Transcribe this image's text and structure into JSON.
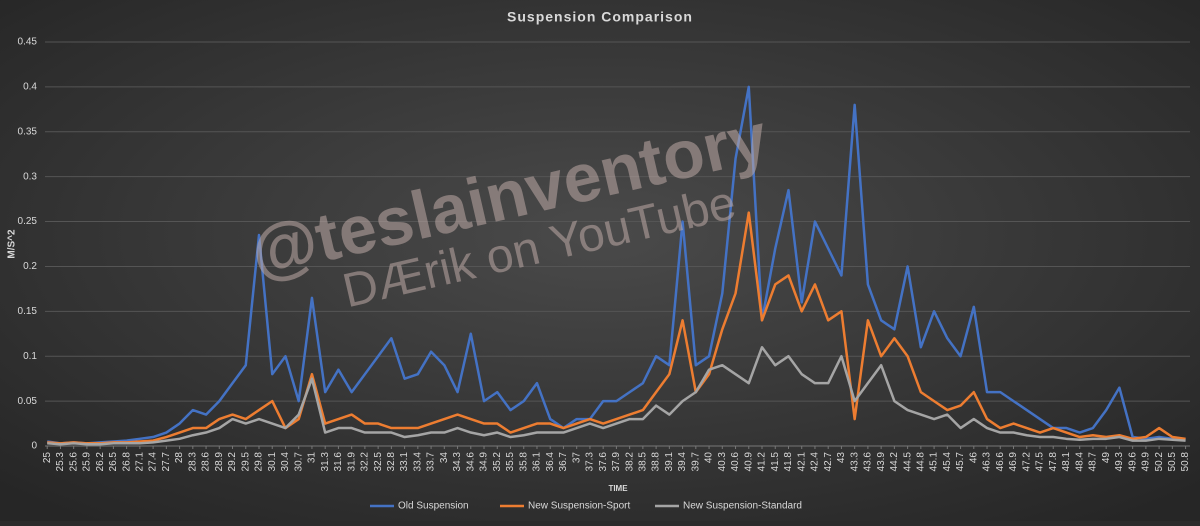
{
  "chart_data": {
    "type": "line",
    "title": "Suspension Comparison",
    "x_label": "TIME",
    "y_label": "M/S^2",
    "annotations": [
      "@teslainventory",
      "DÆrik on YouTube"
    ],
    "x": [
      25,
      25.3,
      25.6,
      25.9,
      26.2,
      26.5,
      26.8,
      27.1,
      27.4,
      27.7,
      28,
      28.3,
      28.6,
      28.9,
      29.2,
      29.5,
      29.8,
      30.1,
      30.4,
      30.7,
      31,
      31.3,
      31.6,
      31.9,
      32.2,
      32.5,
      32.8,
      33.1,
      33.4,
      33.7,
      34,
      34.3,
      34.6,
      34.9,
      35.2,
      35.5,
      35.8,
      36.1,
      36.4,
      36.7,
      37,
      37.3,
      37.6,
      37.9,
      38.2,
      38.5,
      38.8,
      39.1,
      39.4,
      39.7,
      40,
      40.3,
      40.6,
      40.9,
      41.2,
      41.5,
      41.8,
      42.1,
      42.4,
      42.7,
      43,
      43.3,
      43.6,
      43.9,
      44.2,
      44.5,
      44.8,
      45.1,
      45.4,
      45.7,
      46,
      46.3,
      46.6,
      46.9,
      47.2,
      47.5,
      47.8,
      48.1,
      48.4,
      48.7,
      49,
      49.3,
      49.6,
      49.9,
      50.2,
      50.5,
      50.8
    ],
    "xticks": [
      25,
      25.3,
      25.6,
      25.9,
      26.2,
      26.5,
      26.8,
      27.1,
      27.4,
      27.7,
      28,
      28.3,
      28.6,
      28.9,
      29.2,
      29.5,
      29.8,
      30.1,
      30.4,
      30.7,
      31,
      31.3,
      31.6,
      31.9,
      32.2,
      32.5,
      32.8,
      33.1,
      33.4,
      33.7,
      34,
      34.3,
      34.6,
      34.9,
      35.2,
      35.5,
      35.8,
      36.1,
      36.4,
      36.7,
      37,
      37.3,
      37.6,
      37.9,
      38.2,
      38.5,
      38.8,
      39.1,
      39.4,
      39.7,
      40,
      40.3,
      40.6,
      40.9,
      41.2,
      41.5,
      41.8,
      42.1,
      42.4,
      42.7,
      43,
      43.3,
      43.6,
      43.9,
      44.2,
      44.5,
      44.8,
      45.1,
      45.4,
      45.7,
      46,
      46.3,
      46.6,
      46.9,
      47.2,
      47.5,
      47.8,
      48.1,
      48.4,
      48.7,
      49,
      49.3,
      49.6,
      49.9,
      50.2,
      50.5,
      50.8
    ],
    "xlim": [
      24.95,
      50.9
    ],
    "ylim": [
      0,
      0.45
    ],
    "yticks": [
      0,
      0.05,
      0.1,
      0.15,
      0.2,
      0.25,
      0.3,
      0.35,
      0.4,
      0.45
    ],
    "grid": true,
    "legend": "bottom",
    "series": [
      {
        "name": "Old Suspension",
        "color": "#4472c4",
        "values": [
          0.005,
          0.003,
          0.004,
          0.003,
          0.004,
          0.005,
          0.006,
          0.008,
          0.01,
          0.015,
          0.025,
          0.04,
          0.035,
          0.05,
          0.07,
          0.09,
          0.235,
          0.08,
          0.1,
          0.05,
          0.165,
          0.06,
          0.085,
          0.06,
          0.08,
          0.1,
          0.12,
          0.075,
          0.08,
          0.105,
          0.09,
          0.06,
          0.125,
          0.05,
          0.06,
          0.04,
          0.05,
          0.07,
          0.03,
          0.02,
          0.03,
          0.03,
          0.05,
          0.05,
          0.06,
          0.07,
          0.1,
          0.09,
          0.25,
          0.09,
          0.1,
          0.17,
          0.32,
          0.4,
          0.14,
          0.22,
          0.285,
          0.16,
          0.25,
          0.22,
          0.19,
          0.38,
          0.18,
          0.14,
          0.13,
          0.2,
          0.11,
          0.15,
          0.12,
          0.1,
          0.155,
          0.06,
          0.06,
          0.05,
          0.04,
          0.03,
          0.02,
          0.02,
          0.015,
          0.02,
          0.04,
          0.065,
          0.01,
          0.008,
          0.01,
          0.008,
          0.007
        ]
      },
      {
        "name": "New Suspension-Sport",
        "color": "#ed7d31",
        "values": [
          0.004,
          0.003,
          0.004,
          0.003,
          0.003,
          0.004,
          0.004,
          0.005,
          0.006,
          0.01,
          0.015,
          0.02,
          0.02,
          0.03,
          0.035,
          0.03,
          0.04,
          0.05,
          0.02,
          0.03,
          0.08,
          0.025,
          0.03,
          0.035,
          0.025,
          0.025,
          0.02,
          0.02,
          0.02,
          0.025,
          0.03,
          0.035,
          0.03,
          0.025,
          0.025,
          0.015,
          0.02,
          0.025,
          0.025,
          0.02,
          0.025,
          0.03,
          0.025,
          0.03,
          0.035,
          0.04,
          0.06,
          0.08,
          0.14,
          0.06,
          0.08,
          0.13,
          0.17,
          0.26,
          0.14,
          0.18,
          0.19,
          0.15,
          0.18,
          0.14,
          0.15,
          0.03,
          0.14,
          0.1,
          0.12,
          0.1,
          0.06,
          0.05,
          0.04,
          0.045,
          0.06,
          0.03,
          0.02,
          0.025,
          0.02,
          0.015,
          0.02,
          0.015,
          0.01,
          0.012,
          0.01,
          0.012,
          0.008,
          0.01,
          0.02,
          0.01,
          0.008
        ]
      },
      {
        "name": "New Suspension-Standard",
        "color": "#a5a5a5",
        "values": [
          0.003,
          0.002,
          0.003,
          0.002,
          0.002,
          0.003,
          0.003,
          0.003,
          0.004,
          0.006,
          0.008,
          0.012,
          0.015,
          0.02,
          0.03,
          0.025,
          0.03,
          0.025,
          0.02,
          0.035,
          0.075,
          0.015,
          0.02,
          0.02,
          0.015,
          0.015,
          0.015,
          0.01,
          0.012,
          0.015,
          0.015,
          0.02,
          0.015,
          0.012,
          0.015,
          0.01,
          0.012,
          0.015,
          0.015,
          0.015,
          0.02,
          0.025,
          0.02,
          0.025,
          0.03,
          0.03,
          0.045,
          0.035,
          0.05,
          0.06,
          0.085,
          0.09,
          0.08,
          0.07,
          0.11,
          0.09,
          0.1,
          0.08,
          0.07,
          0.07,
          0.1,
          0.05,
          0.07,
          0.09,
          0.05,
          0.04,
          0.035,
          0.03,
          0.035,
          0.02,
          0.03,
          0.02,
          0.015,
          0.015,
          0.012,
          0.01,
          0.01,
          0.008,
          0.007,
          0.008,
          0.008,
          0.01,
          0.006,
          0.006,
          0.008,
          0.007,
          0.006
        ]
      }
    ]
  }
}
